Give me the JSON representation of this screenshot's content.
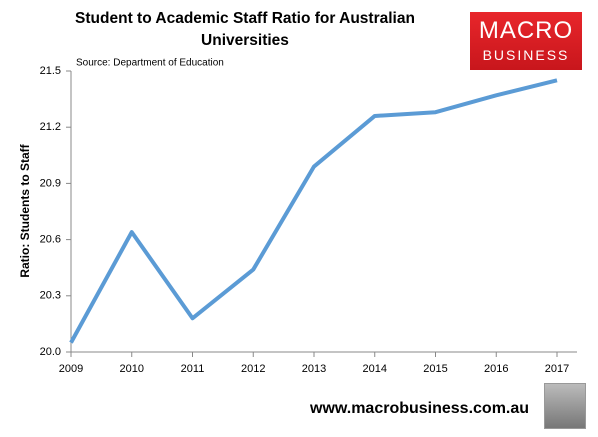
{
  "chart_data": {
    "type": "line",
    "title": "Student to Academic Staff Ratio for Australian Universities",
    "annotation": "Source: Department of Education",
    "y_label": "Ratio: Students to Staff",
    "categories": [
      "2009",
      "2010",
      "2011",
      "2012",
      "2013",
      "2014",
      "2015",
      "2016",
      "2017"
    ],
    "series": [
      {
        "name": "Ratio",
        "color": "#5b9bd5",
        "values": [
          20.05,
          20.64,
          20.18,
          20.44,
          20.99,
          21.26,
          21.28,
          21.37,
          21.45
        ]
      }
    ],
    "ylim": [
      20,
      21.5
    ],
    "yticks": [
      {
        "value": 20,
        "label": "20.0"
      },
      20.3,
      20.6,
      20.9,
      21.2,
      21.5
    ],
    "grid": false,
    "legend": false
  },
  "branding": {
    "logo_line1": "MACRO",
    "logo_line2": "BUSINESS",
    "url": "www.macrobusiness.com.au"
  }
}
